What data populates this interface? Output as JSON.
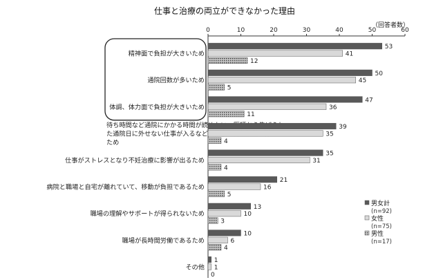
{
  "chart_data": {
    "type": "bar",
    "orientation": "horizontal",
    "title": "仕事と治療の両立ができなかった理由",
    "unit_label": "（回答者数）",
    "xlim": [
      0,
      60
    ],
    "xticks": [
      0,
      10,
      20,
      30,
      40,
      50,
      60
    ],
    "grid": false,
    "legend_position": "right",
    "categories": [
      [
        "精神面で負担が大きいため"
      ],
      [
        "通院回数が多いため"
      ],
      [
        "体調、体力面で負担が大きいため"
      ],
      [
        "待ち時間など通院にかかる時間が読めない、医師から告げられ",
        "た通院日に外せない仕事が入るなど、仕事の日程調整が難しい",
        "ため"
      ],
      [
        "仕事がストレスとなり不妊治療に影響が出るため"
      ],
      [
        "病院と職場と自宅が離れていて、移動が負担であるため"
      ],
      [
        "職場の理解やサポートが得られないため"
      ],
      [
        "職場が長時間労働であるため"
      ],
      [
        "その他"
      ]
    ],
    "highlighted_categories": [
      0,
      1,
      2
    ],
    "series": [
      {
        "name": "男女計",
        "n_label": "(n=92)",
        "color": "#595959",
        "pattern": "solid",
        "values": [
          53,
          50,
          47,
          39,
          35,
          21,
          13,
          10,
          1
        ]
      },
      {
        "name": "女性",
        "n_label": "(n=75)",
        "color": "#d9d9d9",
        "pattern": "solid",
        "values": [
          41,
          45,
          36,
          35,
          31,
          16,
          10,
          6,
          1
        ]
      },
      {
        "name": "男性",
        "n_label": "(n=17)",
        "color": "#808080",
        "pattern": "dotted",
        "values": [
          12,
          5,
          11,
          4,
          4,
          5,
          3,
          4,
          0
        ]
      }
    ]
  }
}
